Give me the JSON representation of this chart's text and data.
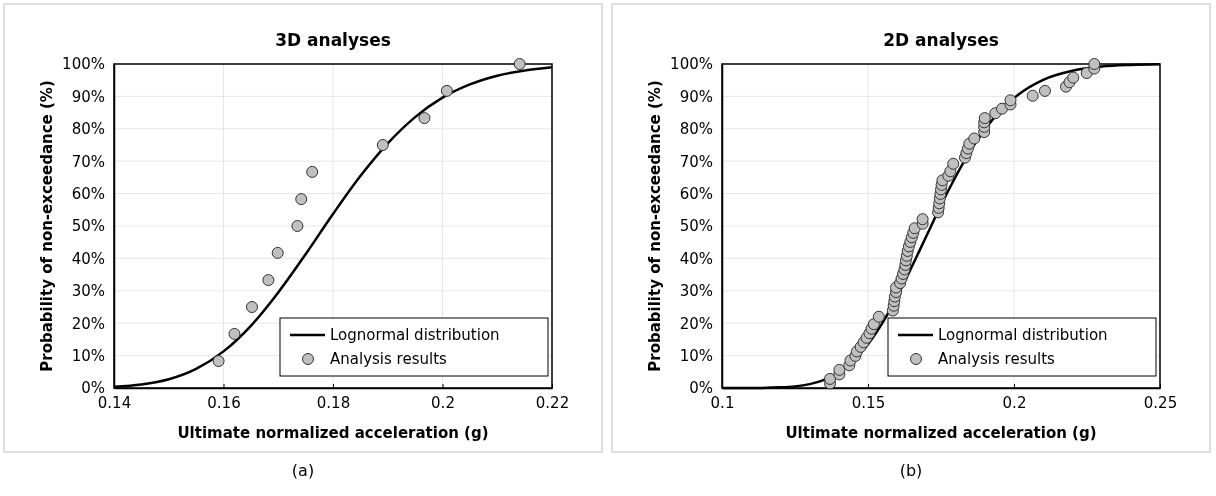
{
  "chart_data": [
    {
      "type": "scatter",
      "title": "3D analyses",
      "xlabel": "Ultimate normalized acceleration (g)",
      "ylabel": "Probability of non-exceedance (%)",
      "annotations": [
        "(a)"
      ],
      "xlim": [
        0.14,
        0.22
      ],
      "xticks": [
        0.14,
        0.16,
        0.18,
        0.2,
        0.22
      ],
      "ylim": [
        0,
        100
      ],
      "yticks": [
        {
          "value": 0,
          "label": "0%"
        },
        {
          "value": 10,
          "label": "10%"
        },
        {
          "value": 20,
          "label": "20%"
        },
        {
          "value": 30,
          "label": "30%"
        },
        {
          "value": 40,
          "label": "40%"
        },
        {
          "value": 50,
          "label": "50%"
        },
        {
          "value": 60,
          "label": "60%"
        },
        {
          "value": 70,
          "label": "70%"
        },
        {
          "value": 80,
          "label": "80%"
        },
        {
          "value": 90,
          "label": "90%"
        },
        {
          "value": 100,
          "label": "100%"
        }
      ],
      "grid": true,
      "legend": "bottom right",
      "series": [
        {
          "name": "Lognormal distribution",
          "type": "line",
          "marker": "none",
          "color": "#000000",
          "x": [
            0.14,
            0.145,
            0.15,
            0.155,
            0.16,
            0.165,
            0.17,
            0.175,
            0.18,
            0.185,
            0.19,
            0.195,
            0.2,
            0.205,
            0.21,
            0.215,
            0.22
          ],
          "values": [
            0.4,
            1.1,
            2.7,
            5.9,
            11.3,
            19.2,
            29.5,
            41.3,
            53.7,
            65.4,
            75.5,
            83.6,
            89.6,
            93.7,
            96.4,
            98.0,
            99.0
          ]
        },
        {
          "name": "Analysis results",
          "marker": "circle",
          "color": "#c0c0c0",
          "x": [
            0.1591,
            0.162,
            0.1652,
            0.1682,
            0.1699,
            0.1735,
            0.1742,
            0.1762,
            0.1891,
            0.1967,
            0.2008,
            0.2141
          ],
          "values": [
            8.3,
            16.7,
            25,
            33.3,
            41.7,
            50,
            58.3,
            66.7,
            75,
            83.3,
            91.7,
            100
          ]
        }
      ]
    },
    {
      "type": "scatter",
      "title": "2D analyses",
      "xlabel": "Ultimate normalized acceleration (g)",
      "ylabel": "Probability of non-exceedance (%)",
      "annotations": [
        "(b)"
      ],
      "xlim": [
        0.1,
        0.25
      ],
      "xticks": [
        0.1,
        0.15,
        0.2,
        0.25
      ],
      "ylim": [
        0,
        100
      ],
      "yticks": [
        {
          "value": 0,
          "label": "0%"
        },
        {
          "value": 10,
          "label": "10%"
        },
        {
          "value": 20,
          "label": "20%"
        },
        {
          "value": 30,
          "label": "30%"
        },
        {
          "value": 40,
          "label": "40%"
        },
        {
          "value": 50,
          "label": "50%"
        },
        {
          "value": 60,
          "label": "60%"
        },
        {
          "value": 70,
          "label": "70%"
        },
        {
          "value": 80,
          "label": "80%"
        },
        {
          "value": 90,
          "label": "90%"
        },
        {
          "value": 100,
          "label": "100%"
        }
      ],
      "grid": true,
      "legend": "bottom right",
      "series": [
        {
          "name": "Lognormal distribution",
          "type": "line",
          "marker": "none",
          "color": "#000000",
          "x": [
            0.1,
            0.11,
            0.12,
            0.125,
            0.13,
            0.135,
            0.14,
            0.145,
            0.15,
            0.155,
            0.16,
            0.165,
            0.17,
            0.175,
            0.18,
            0.185,
            0.19,
            0.195,
            0.2,
            0.21,
            0.22,
            0.23,
            0.24,
            0.25
          ],
          "values": [
            0,
            0,
            0.2,
            0.5,
            1.2,
            2.5,
            4.8,
            8.4,
            13.5,
            20.2,
            28.3,
            37.4,
            46.9,
            56.4,
            65.2,
            73.1,
            79.8,
            85.2,
            89.5,
            95.1,
            97.9,
            99.2,
            99.7,
            99.9
          ]
        },
        {
          "name": "Analysis results",
          "marker": "circle",
          "color": "#c0c0c0",
          "x": [
            0.137,
            0.137,
            0.1402,
            0.1402,
            0.1436,
            0.144,
            0.1457,
            0.1462,
            0.1475,
            0.1485,
            0.1495,
            0.1505,
            0.1512,
            0.152,
            0.1537,
            0.1585,
            0.1588,
            0.159,
            0.1592,
            0.1596,
            0.1596,
            0.161,
            0.1615,
            0.162,
            0.1625,
            0.1628,
            0.163,
            0.1633,
            0.1636,
            0.164,
            0.1645,
            0.165,
            0.1655,
            0.166,
            0.1687,
            0.1687,
            0.174,
            0.1742,
            0.1744,
            0.1746,
            0.1748,
            0.175,
            0.1752,
            0.1755,
            0.1775,
            0.1782,
            0.1792,
            0.1832,
            0.1837,
            0.1842,
            0.1847,
            0.1864,
            0.1898,
            0.1898,
            0.1898,
            0.19,
            0.1936,
            0.1959,
            0.1988,
            0.1988,
            0.2064,
            0.2106,
            0.2178,
            0.219,
            0.2203,
            0.2249,
            0.2275,
            0.2275
          ],
          "values": [
            1.4,
            2.8,
            4.2,
            5.6,
            7.0,
            8.5,
            9.9,
            11.3,
            12.7,
            14.1,
            15.5,
            16.9,
            18.3,
            19.7,
            22.0,
            23.9,
            25.4,
            26.8,
            28.2,
            29.6,
            31.0,
            32.4,
            33.8,
            35.2,
            36.6,
            38.0,
            39.4,
            40.8,
            42.3,
            43.7,
            45.1,
            46.5,
            47.9,
            49.3,
            50.7,
            52.1,
            54.2,
            55.6,
            57.0,
            58.5,
            59.9,
            61.3,
            62.7,
            64.1,
            65.5,
            66.9,
            69.2,
            71.1,
            72.5,
            73.9,
            75.4,
            77.0,
            79.0,
            80.6,
            82.0,
            83.3,
            84.8,
            86.2,
            87.5,
            88.8,
            90.2,
            91.7,
            93.0,
            94.4,
            95.8,
            97.2,
            98.6,
            100
          ]
        }
      ]
    }
  ]
}
